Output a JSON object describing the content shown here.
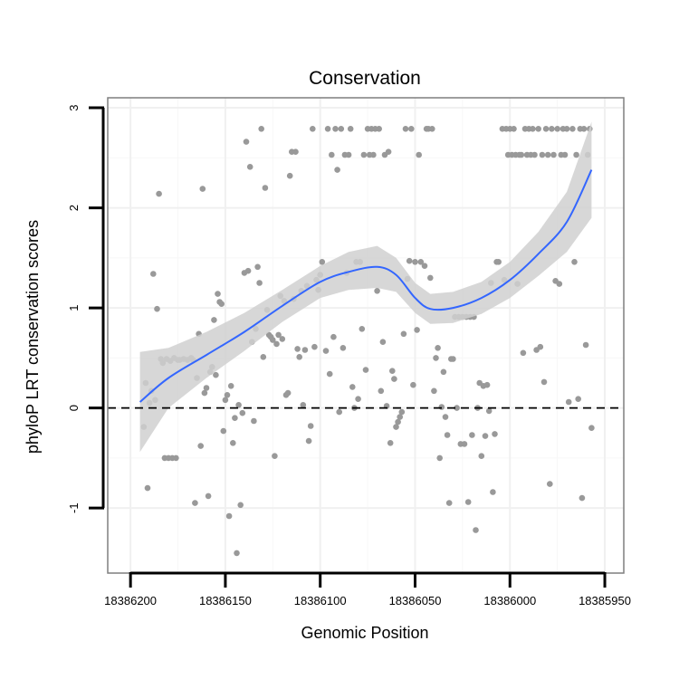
{
  "chart_data": {
    "type": "scatter",
    "title": "Conservation",
    "xlabel": "Genomic Position",
    "ylabel": "phyloP LRT conservation scores",
    "xlim": [
      18386212,
      18385940
    ],
    "ylim": [
      -1.65,
      3.1
    ],
    "x_reversed": true,
    "x_ticks": [
      18386200,
      18386150,
      18386100,
      18386050,
      18386000,
      18385950
    ],
    "x_tick_labels": [
      "18386200",
      "18386150",
      "18386100",
      "18386050",
      "18386000",
      "18385950"
    ],
    "y_ticks": [
      -1,
      0,
      1,
      2,
      3
    ],
    "y_tick_labels": [
      "-1",
      "0",
      "1",
      "2",
      "3"
    ],
    "reference_line": {
      "y": 0,
      "style": "dashed"
    },
    "grid": true,
    "colors": {
      "points": "#999999",
      "smooth": "#3366ff",
      "ribbon": "#d0d0d0",
      "panel_border": "#7f7f7f"
    },
    "points": [
      [
        18386193,
        -0.19
      ],
      [
        18386192,
        0.25
      ],
      [
        18386191,
        -0.8
      ],
      [
        18386190,
        0.05
      ],
      [
        18386189,
        0.17
      ],
      [
        18386188,
        1.34
      ],
      [
        18386187,
        0.08
      ],
      [
        18386186,
        0.99
      ],
      [
        18386185,
        2.14
      ],
      [
        18386184,
        0.49
      ],
      [
        18386183,
        0.45
      ],
      [
        18386182,
        -0.5
      ],
      [
        18386181,
        0.49
      ],
      [
        18386180,
        -0.5
      ],
      [
        18386179,
        0.47
      ],
      [
        18386178,
        -0.5
      ],
      [
        18386177,
        0.5
      ],
      [
        18386176,
        -0.5
      ],
      [
        18386175,
        0.48
      ],
      [
        18386174,
        0.48
      ],
      [
        18386172,
        0.49
      ],
      [
        18386170,
        0.48
      ],
      [
        18386168,
        0.5
      ],
      [
        18386167,
        0.48
      ],
      [
        18386166,
        -0.95
      ],
      [
        18386165,
        0.3
      ],
      [
        18386164,
        0.74
      ],
      [
        18386163,
        -0.38
      ],
      [
        18386162,
        2.19
      ],
      [
        18386161,
        0.15
      ],
      [
        18386160,
        0.2
      ],
      [
        18386159,
        -0.88
      ],
      [
        18386158,
        0.36
      ],
      [
        18386157,
        0.41
      ],
      [
        18386156,
        0.88
      ],
      [
        18386155,
        0.33
      ],
      [
        18386154,
        1.14
      ],
      [
        18386153,
        1.06
      ],
      [
        18386152,
        1.04
      ],
      [
        18386151,
        -0.23
      ],
      [
        18386150,
        0.08
      ],
      [
        18386149,
        0.13
      ],
      [
        18386148,
        -1.08
      ],
      [
        18386147,
        0.22
      ],
      [
        18386146,
        -0.35
      ],
      [
        18386145,
        -0.1
      ],
      [
        18386144,
        -1.45
      ],
      [
        18386143,
        0.03
      ],
      [
        18386142,
        -0.97
      ],
      [
        18386141,
        -0.05
      ],
      [
        18386140,
        1.35
      ],
      [
        18386139,
        2.66
      ],
      [
        18386138,
        1.37
      ],
      [
        18386137,
        2.41
      ],
      [
        18386136,
        0.66
      ],
      [
        18386135,
        -0.13
      ],
      [
        18386134,
        0.79
      ],
      [
        18386133,
        1.41
      ],
      [
        18386132,
        1.25
      ],
      [
        18386131,
        2.79
      ],
      [
        18386130,
        0.51
      ],
      [
        18386129,
        2.2
      ],
      [
        18386128,
        0.98
      ],
      [
        18386127,
        0.73
      ],
      [
        18386126,
        0.71
      ],
      [
        18386125,
        0.68
      ],
      [
        18386124,
        -0.48
      ],
      [
        18386123,
        0.64
      ],
      [
        18386122,
        0.73
      ],
      [
        18386121,
        1.12
      ],
      [
        18386120,
        0.69
      ],
      [
        18386119,
        1.07
      ],
      [
        18386118,
        0.13
      ],
      [
        18386117,
        0.15
      ],
      [
        18386116,
        2.32
      ],
      [
        18386115,
        2.56
      ],
      [
        18386114,
        1.09
      ],
      [
        18386113,
        2.56
      ],
      [
        18386112,
        0.59
      ],
      [
        18386111,
        0.51
      ],
      [
        18386110,
        1.17
      ],
      [
        18386109,
        0.03
      ],
      [
        18386108,
        0.58
      ],
      [
        18386107,
        1.22
      ],
      [
        18386106,
        -0.33
      ],
      [
        18386105,
        -0.18
      ],
      [
        18386104,
        2.79
      ],
      [
        18386103,
        0.61
      ],
      [
        18386102,
        1.28
      ],
      [
        18386101,
        1.18
      ],
      [
        18386100,
        1.33
      ],
      [
        18386099,
        1.46
      ],
      [
        18386097,
        0.57
      ],
      [
        18386096,
        2.79
      ],
      [
        18386095,
        0.34
      ],
      [
        18386094,
        2.53
      ],
      [
        18386093,
        0.71
      ],
      [
        18386092,
        2.79
      ],
      [
        18386091,
        2.38
      ],
      [
        18386090,
        -0.04
      ],
      [
        18386089,
        2.79
      ],
      [
        18386088,
        0.6
      ],
      [
        18386087,
        2.53
      ],
      [
        18386086,
        1.35
      ],
      [
        18386085,
        2.53
      ],
      [
        18386084,
        2.79
      ],
      [
        18386083,
        0.21
      ],
      [
        18386082,
        0.0
      ],
      [
        18386081,
        1.46
      ],
      [
        18386080,
        0.09
      ],
      [
        18386079,
        1.46
      ],
      [
        18386078,
        0.79
      ],
      [
        18386077,
        2.53
      ],
      [
        18386076,
        0.38
      ],
      [
        18386075,
        2.79
      ],
      [
        18386074,
        2.53
      ],
      [
        18386073,
        2.79
      ],
      [
        18386072,
        2.53
      ],
      [
        18386071,
        2.79
      ],
      [
        18386070,
        1.17
      ],
      [
        18386069,
        2.79
      ],
      [
        18386068,
        0.17
      ],
      [
        18386067,
        0.66
      ],
      [
        18386066,
        2.53
      ],
      [
        18386065,
        0.02
      ],
      [
        18386064,
        2.56
      ],
      [
        18386063,
        -0.35
      ],
      [
        18386062,
        0.37
      ],
      [
        18386061,
        0.29
      ],
      [
        18386060,
        -0.19
      ],
      [
        18386059,
        -0.14
      ],
      [
        18386058,
        -0.09
      ],
      [
        18386057,
        -0.04
      ],
      [
        18386056,
        0.74
      ],
      [
        18386055,
        2.79
      ],
      [
        18386054,
        1.29
      ],
      [
        18386053,
        1.47
      ],
      [
        18386052,
        2.79
      ],
      [
        18386051,
        0.23
      ],
      [
        18386050,
        1.46
      ],
      [
        18386049,
        0.78
      ],
      [
        18386048,
        2.53
      ],
      [
        18386047,
        1.46
      ],
      [
        18386045,
        1.42
      ],
      [
        18386044,
        2.79
      ],
      [
        18386043,
        2.79
      ],
      [
        18386042,
        1.3
      ],
      [
        18386041,
        2.79
      ],
      [
        18386040,
        0.17
      ],
      [
        18386039,
        0.5
      ],
      [
        18386038,
        0.6
      ],
      [
        18386037,
        -0.5
      ],
      [
        18386036,
        0.01
      ],
      [
        18386035,
        0.36
      ],
      [
        18386034,
        -0.09
      ],
      [
        18386033,
        -0.27
      ],
      [
        18386032,
        -0.95
      ],
      [
        18386031,
        0.49
      ],
      [
        18386030,
        0.49
      ],
      [
        18386029,
        0.91
      ],
      [
        18386028,
        0.0
      ],
      [
        18386027,
        0.91
      ],
      [
        18386026,
        -0.36
      ],
      [
        18386025,
        0.91
      ],
      [
        18386024,
        -0.36
      ],
      [
        18386023,
        0.91
      ],
      [
        18386022,
        -0.94
      ],
      [
        18386021,
        0.91
      ],
      [
        18386020,
        -0.27
      ],
      [
        18386019,
        0.91
      ],
      [
        18386018,
        -1.22
      ],
      [
        18386017,
        0.0
      ],
      [
        18386016,
        0.25
      ],
      [
        18386015,
        -0.48
      ],
      [
        18386014,
        0.22
      ],
      [
        18386013,
        -0.28
      ],
      [
        18386012,
        0.23
      ],
      [
        18386011,
        -0.03
      ],
      [
        18386010,
        1.25
      ],
      [
        18386009,
        -0.84
      ],
      [
        18386008,
        -0.26
      ],
      [
        18386007,
        1.46
      ],
      [
        18386006,
        1.46
      ],
      [
        18386004,
        2.79
      ],
      [
        18386003,
        1.28
      ],
      [
        18386002,
        2.79
      ],
      [
        18386001,
        2.53
      ],
      [
        18386000,
        2.79
      ],
      [
        18385999,
        2.53
      ],
      [
        18385998,
        2.79
      ],
      [
        18385997,
        2.53
      ],
      [
        18385996,
        1.24
      ],
      [
        18385995,
        2.53
      ],
      [
        18385994,
        2.53
      ],
      [
        18385993,
        0.55
      ],
      [
        18385992,
        2.79
      ],
      [
        18385991,
        2.53
      ],
      [
        18385990,
        2.79
      ],
      [
        18385989,
        2.53
      ],
      [
        18385988,
        2.79
      ],
      [
        18385987,
        2.53
      ],
      [
        18385986,
        0.58
      ],
      [
        18385985,
        2.79
      ],
      [
        18385984,
        0.61
      ],
      [
        18385983,
        2.53
      ],
      [
        18385982,
        0.26
      ],
      [
        18385981,
        2.79
      ],
      [
        18385980,
        2.53
      ],
      [
        18385979,
        -0.76
      ],
      [
        18385978,
        2.79
      ],
      [
        18385977,
        2.53
      ],
      [
        18385976,
        1.27
      ],
      [
        18385975,
        2.79
      ],
      [
        18385974,
        1.24
      ],
      [
        18385973,
        2.53
      ],
      [
        18385972,
        2.79
      ],
      [
        18385971,
        2.53
      ],
      [
        18385970,
        2.79
      ],
      [
        18385969,
        0.06
      ],
      [
        18385967,
        2.79
      ],
      [
        18385966,
        1.46
      ],
      [
        18385965,
        2.53
      ],
      [
        18385964,
        0.09
      ],
      [
        18385963,
        2.79
      ],
      [
        18385962,
        -0.9
      ],
      [
        18385961,
        2.79
      ],
      [
        18385960,
        0.63
      ],
      [
        18385959,
        2.53
      ],
      [
        18385958,
        2.79
      ],
      [
        18385957,
        -0.2
      ]
    ],
    "smooth": [
      [
        18386195,
        0.06
      ],
      [
        18386180,
        0.3
      ],
      [
        18386160,
        0.53
      ],
      [
        18386140,
        0.76
      ],
      [
        18386120,
        1.02
      ],
      [
        18386100,
        1.26
      ],
      [
        18386085,
        1.36
      ],
      [
        18386070,
        1.41
      ],
      [
        18386060,
        1.33
      ],
      [
        18386050,
        1.1
      ],
      [
        18386042,
        0.99
      ],
      [
        18386030,
        1.0
      ],
      [
        18386015,
        1.1
      ],
      [
        18386000,
        1.28
      ],
      [
        18385985,
        1.54
      ],
      [
        18385970,
        1.86
      ],
      [
        18385957,
        2.38
      ]
    ],
    "ribbon_upper": [
      [
        18386195,
        0.56
      ],
      [
        18386180,
        0.6
      ],
      [
        18386160,
        0.76
      ],
      [
        18386140,
        0.95
      ],
      [
        18386120,
        1.18
      ],
      [
        18386100,
        1.42
      ],
      [
        18386085,
        1.56
      ],
      [
        18386070,
        1.62
      ],
      [
        18386060,
        1.5
      ],
      [
        18386050,
        1.25
      ],
      [
        18386042,
        1.14
      ],
      [
        18386030,
        1.16
      ],
      [
        18386015,
        1.26
      ],
      [
        18386000,
        1.46
      ],
      [
        18385985,
        1.76
      ],
      [
        18385970,
        2.16
      ],
      [
        18385957,
        2.86
      ]
    ],
    "ribbon_lower": [
      [
        18386195,
        -0.44
      ],
      [
        18386180,
        0.0
      ],
      [
        18386160,
        0.3
      ],
      [
        18386140,
        0.57
      ],
      [
        18386120,
        0.86
      ],
      [
        18386100,
        1.1
      ],
      [
        18386085,
        1.18
      ],
      [
        18386070,
        1.2
      ],
      [
        18386060,
        1.16
      ],
      [
        18386050,
        0.95
      ],
      [
        18386042,
        0.84
      ],
      [
        18386030,
        0.85
      ],
      [
        18386015,
        0.94
      ],
      [
        18386000,
        1.1
      ],
      [
        18385985,
        1.32
      ],
      [
        18385970,
        1.56
      ],
      [
        18385957,
        1.9
      ]
    ]
  }
}
